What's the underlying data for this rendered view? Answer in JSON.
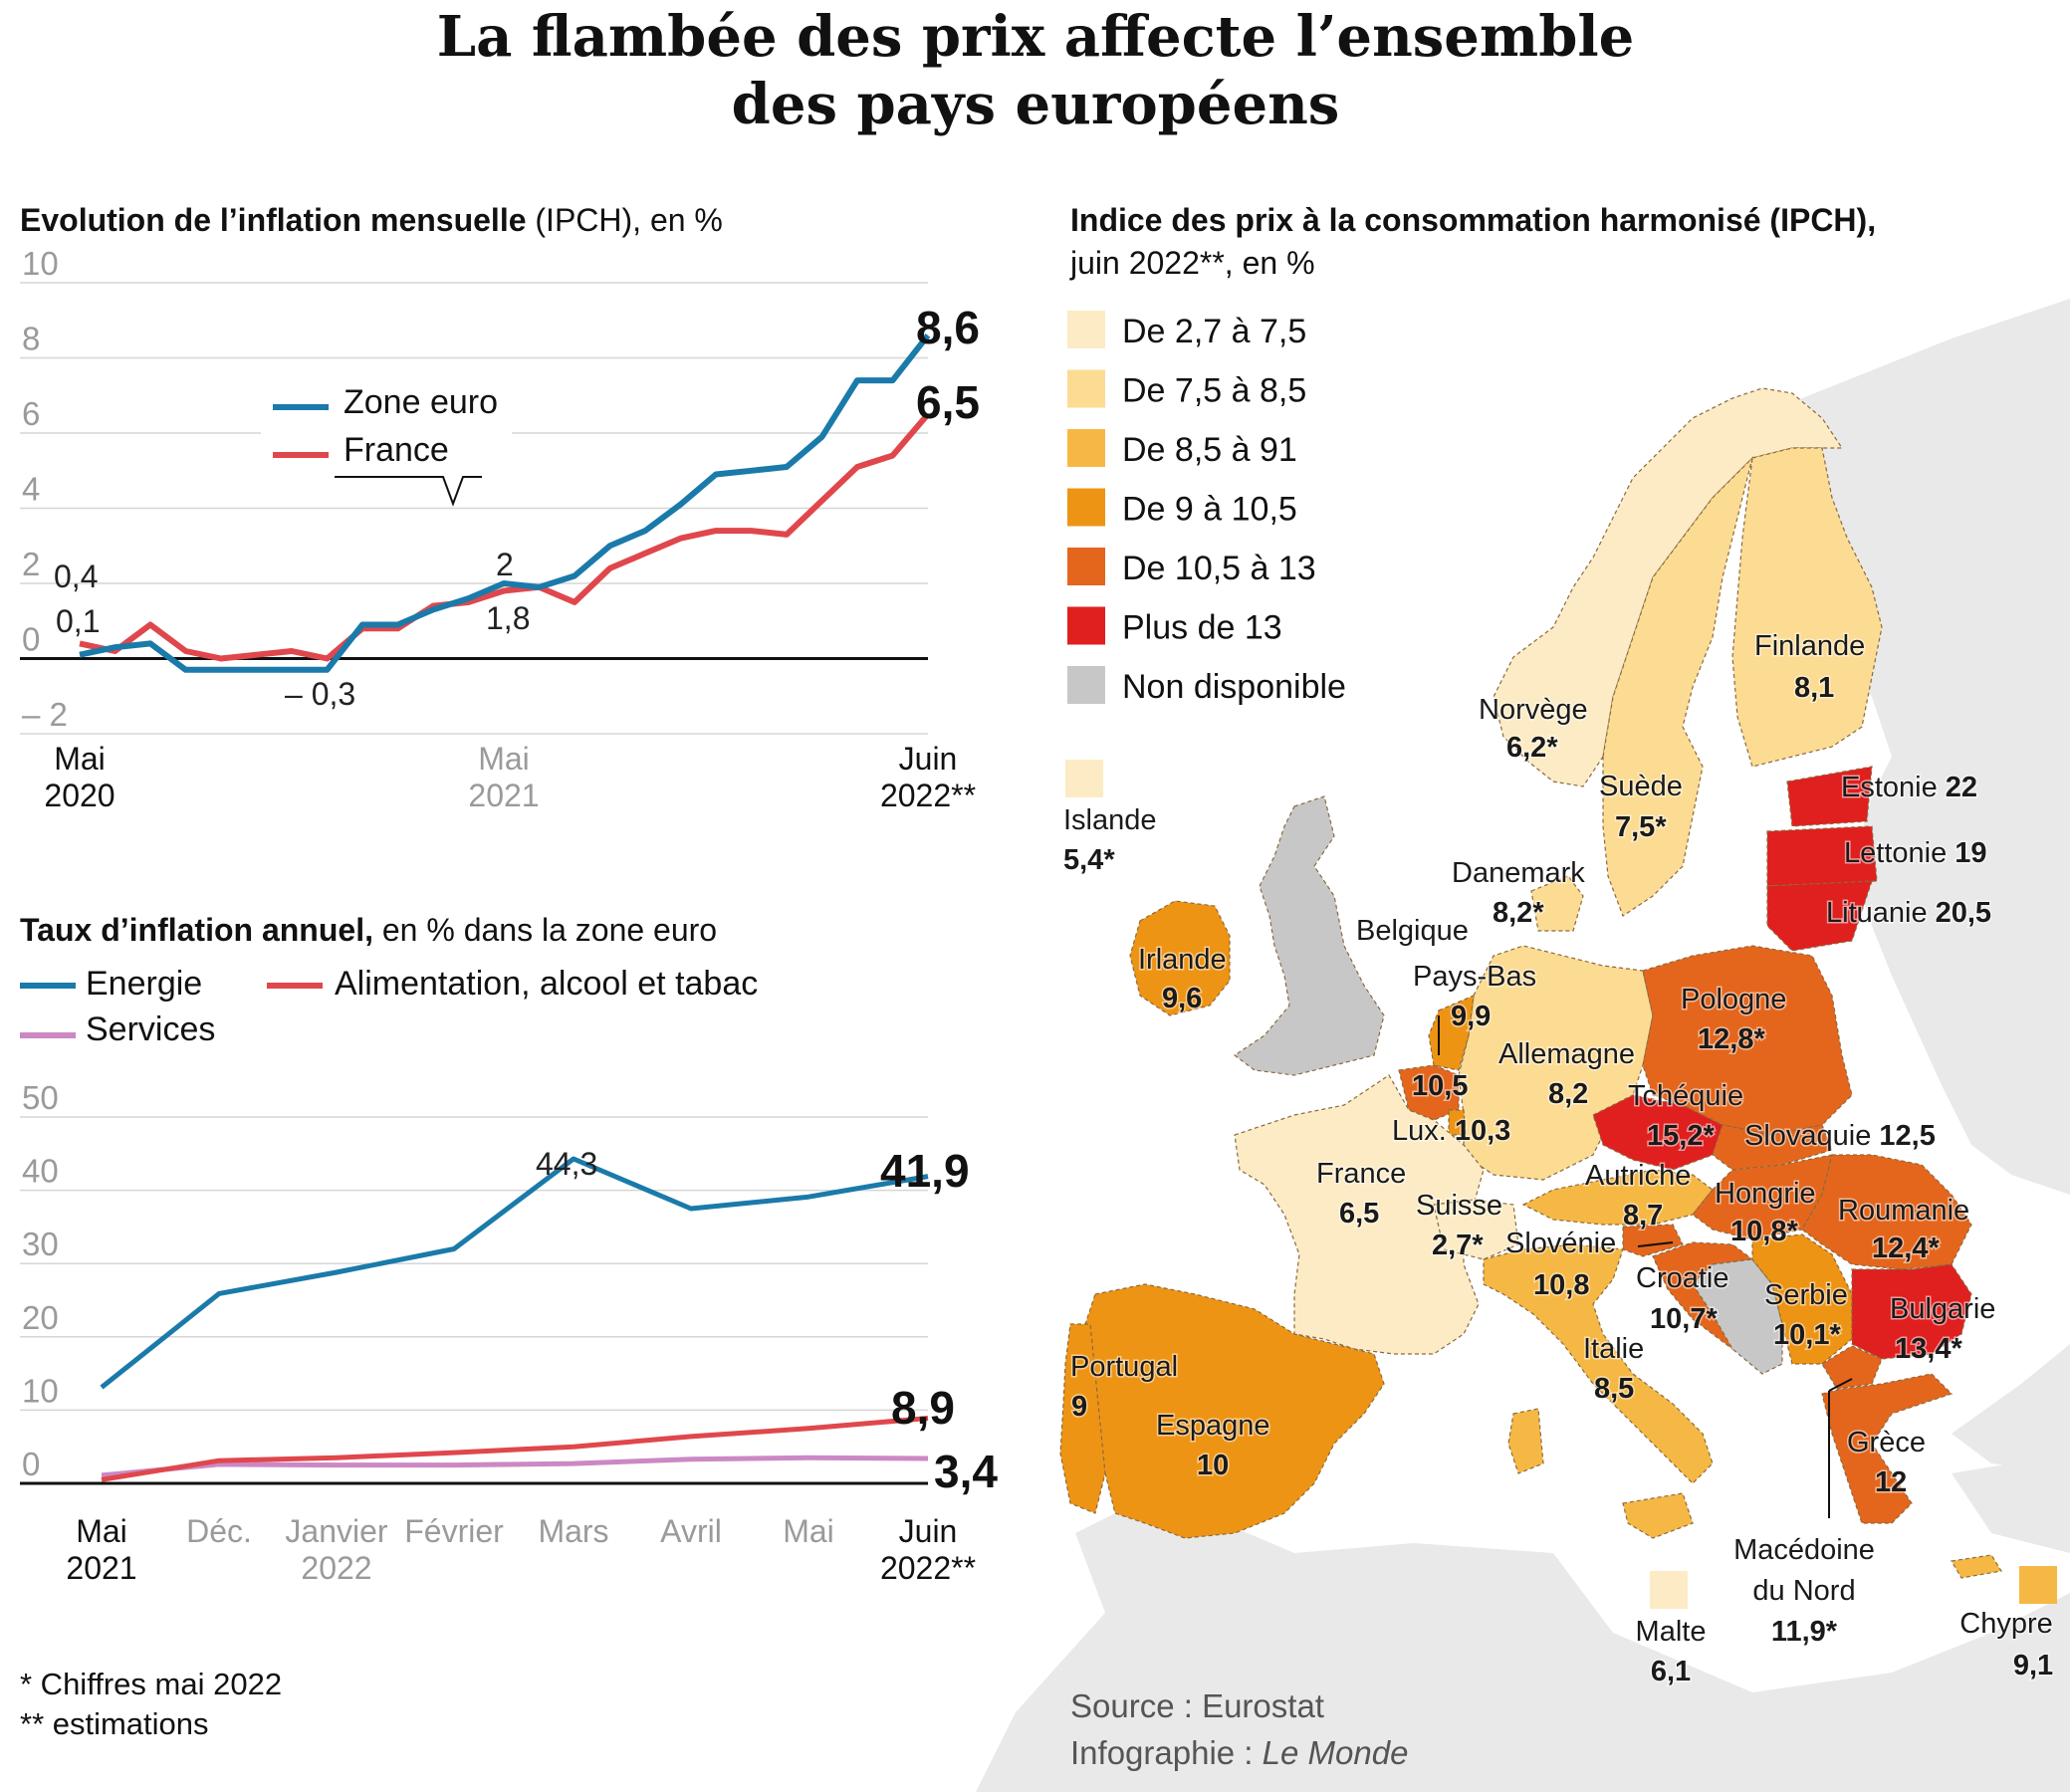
{
  "title_line1": "La flambée des prix affecte l’ensemble",
  "title_line2": "des pays européens",
  "chart_data": [
    {
      "type": "line",
      "title_bold": "Evolution de l’inflation mensuelle",
      "title_rest": " (IPCH), en %",
      "ylim": [
        -2,
        10
      ],
      "yticks": [
        "10",
        "8",
        "6",
        "4",
        "2",
        "0",
        "– 2"
      ],
      "x_labels": [
        {
          "line1": "Mai",
          "line2": "2020",
          "grey": false
        },
        {
          "line1": "Mai",
          "line2": "2021",
          "grey": true
        },
        {
          "line1": "Juin",
          "line2": "2022**",
          "grey": false
        }
      ],
      "legend": [
        "Zone euro",
        "France"
      ],
      "series": [
        {
          "name": "Zone euro",
          "color": "#1a7aaa",
          "values": [
            0.1,
            0.3,
            0.4,
            -0.3,
            -0.3,
            -0.3,
            -0.3,
            -0.3,
            0.9,
            0.9,
            1.3,
            1.6,
            2.0,
            1.9,
            2.2,
            3.0,
            3.4,
            4.1,
            4.9,
            5.0,
            5.1,
            5.9,
            7.4,
            7.4,
            8.6
          ]
        },
        {
          "name": "France",
          "color": "#e0474c",
          "values": [
            0.4,
            0.2,
            0.9,
            0.2,
            0.0,
            0.1,
            0.2,
            0.0,
            0.8,
            0.8,
            1.4,
            1.5,
            1.8,
            1.9,
            1.5,
            2.4,
            2.8,
            3.2,
            3.4,
            3.4,
            3.3,
            4.2,
            5.1,
            5.4,
            6.5
          ]
        }
      ],
      "annotations": {
        "zone_first": "0,1",
        "france_first": "0,4",
        "low": "– 0,3",
        "zone_mid": "2",
        "france_mid": "1,8"
      },
      "end_labels": {
        "zone": "8,6",
        "france": "6,5"
      }
    },
    {
      "type": "line",
      "title_bold": "Taux d’inflation annuel,",
      "title_rest": " en % dans la zone euro",
      "ylim": [
        0,
        50
      ],
      "yticks": [
        "50",
        "40",
        "30",
        "20",
        "10",
        "0"
      ],
      "categories": [
        "Mai 2021",
        "Déc.",
        "Janvier 2022",
        "Février",
        "Mars",
        "Avril",
        "Mai",
        "Juin 2022**"
      ],
      "x_labels": [
        {
          "line1": "Mai",
          "line2": "2021",
          "grey": false
        },
        {
          "line1": "Déc.",
          "line2": "",
          "grey": true
        },
        {
          "line1": "Janvier",
          "line2": "2022",
          "grey": true
        },
        {
          "line1": "Février",
          "line2": "",
          "grey": true
        },
        {
          "line1": "Mars",
          "line2": "",
          "grey": true
        },
        {
          "line1": "Avril",
          "line2": "",
          "grey": true
        },
        {
          "line1": "Mai",
          "line2": "",
          "grey": true
        },
        {
          "line1": "Juin",
          "line2": "2022**",
          "grey": false
        }
      ],
      "legend": [
        "Energie",
        "Alimentation, alcool et tabac",
        "Services"
      ],
      "series": [
        {
          "name": "Energie",
          "color": "#1a7aaa",
          "values": [
            13.1,
            25.9,
            28.8,
            32.0,
            44.3,
            37.5,
            39.1,
            41.9
          ]
        },
        {
          "name": "Alimentation, alcool et tabac",
          "color": "#e0474c",
          "values": [
            0.5,
            3.1,
            3.5,
            4.2,
            5.0,
            6.4,
            7.5,
            8.9
          ]
        },
        {
          "name": "Services",
          "color": "#cc88c4",
          "values": [
            1.1,
            2.6,
            2.5,
            2.5,
            2.7,
            3.3,
            3.5,
            3.4
          ]
        }
      ],
      "annotations": {
        "peak": "44,3"
      },
      "end_labels": {
        "energie": "41,9",
        "alimentation": "8,9",
        "services": "3,4"
      }
    }
  ],
  "map": {
    "title_bold": "Indice des prix à la consommation harmonisé (IPCH),",
    "subtitle": "juin 2022**, en %",
    "legend": [
      {
        "label": "De 2,7 à 7,5",
        "color": "#fcebc4"
      },
      {
        "label": "De 7,5 à 8,5",
        "color": "#fcdb93"
      },
      {
        "label": "De 8,5 à 91",
        "color": "#f6b845"
      },
      {
        "label": "De 9 à 10,5",
        "color": "#ee9414"
      },
      {
        "label": "De 10,5 à 13",
        "color": "#e4661c"
      },
      {
        "label": "Plus de 13",
        "color": "#e01f1f"
      },
      {
        "label": "Non disponible",
        "color": "#c7c7c7"
      }
    ],
    "countries": [
      {
        "name": "Islande",
        "value": "5,4*",
        "color": "#fcebc4"
      },
      {
        "name": "Norvège",
        "value": "6,2*",
        "color": "#fcebc4"
      },
      {
        "name": "Suède",
        "value": "7,5*",
        "color": "#fcdb93"
      },
      {
        "name": "Finlande",
        "value": "8,1",
        "color": "#fcdb93"
      },
      {
        "name": "Estonie",
        "value": "22",
        "color": "#e01f1f"
      },
      {
        "name": "Lettonie",
        "value": "19",
        "color": "#e01f1f"
      },
      {
        "name": "Lituanie",
        "value": "20,5",
        "color": "#e01f1f"
      },
      {
        "name": "Danemark",
        "value": "8,2*",
        "color": "#fcdb93"
      },
      {
        "name": "Irlande",
        "value": "9,6",
        "color": "#ee9414"
      },
      {
        "name": "Belgique",
        "value": "10,5",
        "color": "#e4661c"
      },
      {
        "name": "Pays-Bas",
        "value": "9,9",
        "color": "#ee9414"
      },
      {
        "name": "Lux.",
        "value": "10,3",
        "color": "#ee9414"
      },
      {
        "name": "Allemagne",
        "value": "8,2",
        "color": "#fcdb93"
      },
      {
        "name": "Pologne",
        "value": "12,8*",
        "color": "#e4661c"
      },
      {
        "name": "Tchéquie",
        "value": "15,2*",
        "color": "#e01f1f"
      },
      {
        "name": "Slovaquie",
        "value": "12,5",
        "color": "#e4661c"
      },
      {
        "name": "France",
        "value": "6,5",
        "color": "#fcebc4"
      },
      {
        "name": "Autriche",
        "value": "8,7",
        "color": "#f6b845"
      },
      {
        "name": "Hongrie",
        "value": "10,8*",
        "color": "#e4661c"
      },
      {
        "name": "Roumanie",
        "value": "12,4*",
        "color": "#e4661c"
      },
      {
        "name": "Suisse",
        "value": "2,7*",
        "color": "#fcebc4"
      },
      {
        "name": "Slovénie",
        "value": "10,8",
        "color": "#e4661c"
      },
      {
        "name": "Croatie",
        "value": "10,7*",
        "color": "#e4661c"
      },
      {
        "name": "Serbie",
        "value": "10,1*",
        "color": "#ee9414"
      },
      {
        "name": "Bulgarie",
        "value": "13,4*",
        "color": "#e01f1f"
      },
      {
        "name": "Portugal",
        "value": "9",
        "color": "#ee9414"
      },
      {
        "name": "Espagne",
        "value": "10",
        "color": "#ee9414"
      },
      {
        "name": "Italie",
        "value": "8,5",
        "color": "#f6b845"
      },
      {
        "name": "Grèce",
        "value": "12",
        "color": "#e4661c"
      },
      {
        "name": "Macédoine du Nord",
        "value": "11,9*",
        "color": "#e4661c"
      },
      {
        "name": "Malte",
        "value": "6,1",
        "color": "#fcebc4"
      },
      {
        "name": "Chypre",
        "value": "9,1",
        "color": "#f6b845"
      }
    ],
    "macedoine_line1": "Macédoine",
    "macedoine_line2": "du Nord"
  },
  "footnotes": {
    "note1": "* Chiffres mai 2022",
    "note2": "** estimations"
  },
  "source": {
    "line1": "Source : Eurostat",
    "line2_prefix": "Infographie : ",
    "line2_italic": "Le Monde"
  }
}
